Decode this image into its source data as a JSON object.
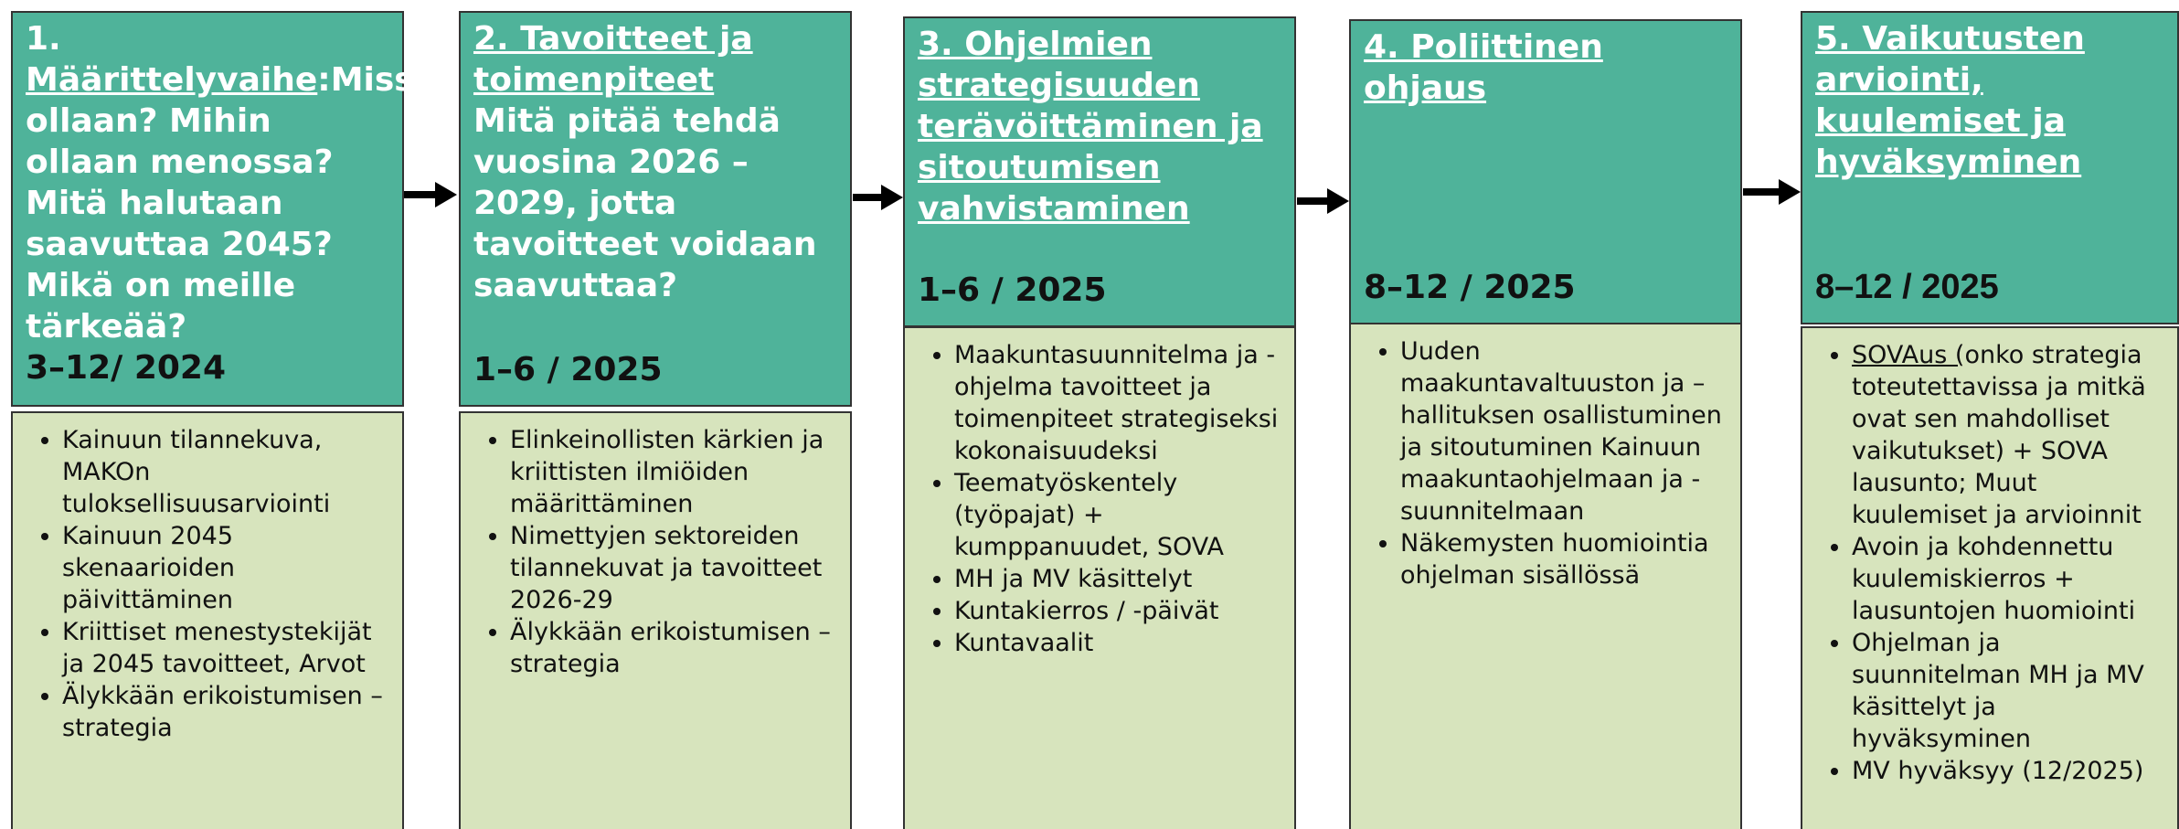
{
  "stages": [
    {
      "prefix": "1. ",
      "heading": "Määrittelyvaihe",
      "suffix": ":",
      "question": "Missä ollaan? Mihin ollaan menossa? Mitä halutaan saavuttaa 2045? Mikä on meille tärkeää?",
      "date": "3–12/ 2024",
      "bullets": [
        "Kainuun tilannekuva, MAKOn tuloksellisuusarviointi",
        "Kainuun 2045 skenaarioiden päivittäminen",
        "Kriittiset menestystekijät ja 2045 tavoitteet, Arvot",
        "Älykkään erikoistumisen – strategia"
      ]
    },
    {
      "heading": "2. Tavoitteet ja toimenpiteet",
      "question": "Mitä pitää tehdä vuosina 2026 – 2029, jotta tavoitteet voidaan saavuttaa?",
      "date": "1–6 / 2025",
      "bullets": [
        "Elinkeinollisten kärkien ja kriittisten ilmiöiden määrittäminen",
        "Nimettyjen sektoreiden tilannekuvat ja tavoitteet 2026-29",
        "Älykkään erikoistumisen – strategia"
      ]
    },
    {
      "heading": "3. Ohjelmien strategisuuden terävöittäminen ja sitoutumisen vahvistaminen",
      "date": "1–6 / 2025",
      "bullets": [
        "Maakuntasuunnitelma ja -ohjelma tavoitteet ja toimenpiteet strategiseksi kokonaisuudeksi",
        "Teematyöskentely (työpajat) + kumppanuudet, SOVA",
        "MH ja MV käsittelyt",
        "Kuntakierros / -päivät",
        "Kuntavaalit"
      ]
    },
    {
      "heading": "4. Poliittinen ohjaus",
      "date": "8–12 / 2025",
      "bullets": [
        "Uuden maakuntavaltuuston ja –hallituksen osallistuminen ja sitoutuminen Kainuun maakuntaohjelmaan ja -suunnitelmaan",
        "Näkemysten huomiointia ohjelman sisällössä"
      ]
    },
    {
      "heading": "5. Vaikutusten arviointi, kuulemiset ja hyväksyminen",
      "date": "8–12 / 2025",
      "bullets": [
        {
          "underlined": "SOVAus (",
          "text": "onko strategia toteutettavissa ja mitkä ovat sen mahdolliset vaikutukset) + SOVA lausunto; Muut kuulemiset ja arvioinnit"
        },
        "Avoin ja kohdennettu kuulemiskierros + lausuntojen huomiointi",
        "Ohjelman ja suunnitelman MH ja MV käsittelyt ja hyväksyminen",
        "MV hyväksyy (12/2025)"
      ]
    }
  ]
}
